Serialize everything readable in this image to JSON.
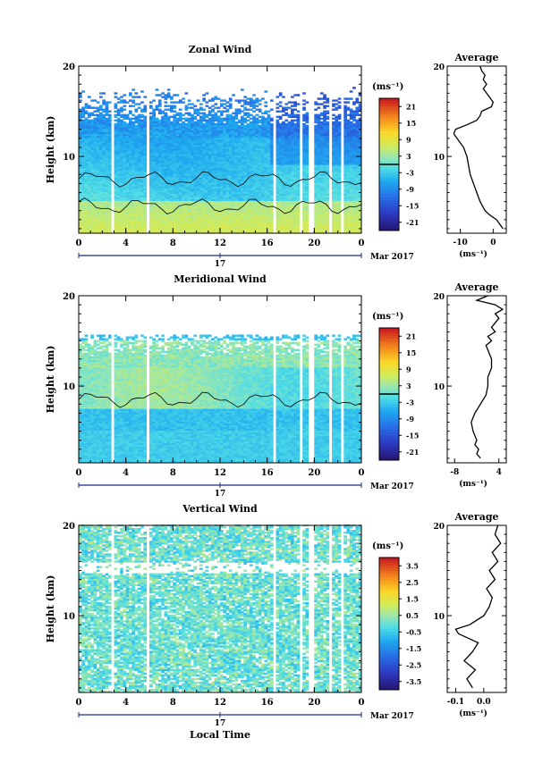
{
  "chart_data": [
    {
      "type": "heatmap",
      "title": "Zonal Wind",
      "ylabel": "Height (km)",
      "ylim": [
        1.5,
        20
      ],
      "xlim": [
        0,
        24
      ],
      "x_ticks": [
        "0",
        "4",
        "8",
        "12",
        "16",
        "20",
        "0"
      ],
      "y_ticks": [
        "10",
        "20"
      ],
      "date_label": "17",
      "month_label": "Mar 2017",
      "colorbar": {
        "unit": "(ms⁻¹)",
        "range": [
          -24,
          24
        ],
        "ticks": [
          "21",
          "15",
          "9",
          "3",
          "-3",
          "-9",
          "-15",
          "-21"
        ],
        "marker": 0
      },
      "average": {
        "title": "Average",
        "xlabel": "(ms⁻¹)",
        "x_ticks": [
          "-10",
          "0"
        ],
        "xlim": [
          -14,
          4
        ],
        "ylim": [
          1.5,
          20
        ],
        "y_ticks": [
          "10",
          "20"
        ],
        "profile": [
          [
            2,
            3
          ],
          [
            2.5,
            2
          ],
          [
            3,
            1
          ],
          [
            3.5,
            -1
          ],
          [
            4,
            -2.5
          ],
          [
            5,
            -4
          ],
          [
            6,
            -5
          ],
          [
            7,
            -6
          ],
          [
            8,
            -7
          ],
          [
            9,
            -7.5
          ],
          [
            10,
            -8
          ],
          [
            11,
            -9
          ],
          [
            12,
            -11
          ],
          [
            12.5,
            -12
          ],
          [
            13,
            -11.5
          ],
          [
            13.5,
            -8
          ],
          [
            14,
            -5
          ],
          [
            14.5,
            -4
          ],
          [
            15,
            -3.5
          ],
          [
            15.5,
            -0.5
          ],
          [
            16,
            0
          ],
          [
            16.5,
            -1
          ],
          [
            17,
            -2
          ],
          [
            17.5,
            -3
          ],
          [
            18,
            -2
          ],
          [
            18.5,
            -3
          ],
          [
            19,
            -2.5
          ],
          [
            19.5,
            -3.5
          ],
          [
            20,
            -4
          ]
        ]
      }
    },
    {
      "type": "heatmap",
      "title": "Meridional Wind",
      "ylabel": "Height (km)",
      "ylim": [
        1.5,
        20
      ],
      "xlim": [
        0,
        24
      ],
      "x_ticks": [
        "0",
        "4",
        "8",
        "12",
        "16",
        "20",
        "0"
      ],
      "y_ticks": [
        "10",
        "20"
      ],
      "date_label": "17",
      "month_label": "Mar 2017",
      "colorbar": {
        "unit": "(ms⁻¹)",
        "range": [
          -24,
          24
        ],
        "ticks": [
          "21",
          "15",
          "9",
          "3",
          "-3",
          "-9",
          "-15",
          "-21"
        ],
        "marker": 0
      },
      "average": {
        "title": "Average",
        "xlabel": "(ms⁻¹)",
        "x_ticks": [
          "-8",
          "4"
        ],
        "xlim": [
          -10,
          6
        ],
        "ylim": [
          1.5,
          20
        ],
        "y_ticks": [
          "10",
          "20"
        ],
        "profile": [
          [
            2,
            -1
          ],
          [
            2.5,
            -2
          ],
          [
            3,
            -1.5
          ],
          [
            3.5,
            -2.5
          ],
          [
            4,
            -2
          ],
          [
            5,
            -3
          ],
          [
            6,
            -3.5
          ],
          [
            7,
            -2.5
          ],
          [
            8,
            -1
          ],
          [
            9,
            0.5
          ],
          [
            10,
            1
          ],
          [
            11,
            1
          ],
          [
            12,
            2
          ],
          [
            13,
            2
          ],
          [
            14,
            1
          ],
          [
            14.5,
            0.5
          ],
          [
            15,
            2
          ],
          [
            15.5,
            1
          ],
          [
            16,
            3
          ],
          [
            16.5,
            2
          ],
          [
            17,
            3
          ],
          [
            17.5,
            4
          ],
          [
            18,
            3
          ],
          [
            18.5,
            5
          ],
          [
            19,
            3
          ],
          [
            19.5,
            -2
          ],
          [
            20,
            1
          ]
        ]
      }
    },
    {
      "type": "heatmap",
      "title": "Vertical Wind",
      "ylabel": "Height (km)",
      "xlabel": "Local Time",
      "ylim": [
        1.5,
        20
      ],
      "xlim": [
        0,
        24
      ],
      "x_ticks": [
        "0",
        "4",
        "8",
        "12",
        "16",
        "20",
        "0"
      ],
      "y_ticks": [
        "10",
        "20"
      ],
      "date_label": "17",
      "month_label": "Mar 2017",
      "colorbar": {
        "unit": "(ms⁻¹)",
        "range": [
          -4,
          4
        ],
        "ticks": [
          "3.5",
          "2.5",
          "1.5",
          "0.5",
          "-0.5",
          "-1.5",
          "-2.5",
          "-3.5"
        ]
      },
      "average": {
        "title": "Average",
        "xlabel": "(ms⁻¹)",
        "x_ticks": [
          "-0.1",
          "0.0"
        ],
        "xlim": [
          -0.13,
          0.08
        ],
        "ylim": [
          1.5,
          20
        ],
        "y_ticks": [
          "10",
          "20"
        ],
        "profile": [
          [
            2,
            -0.04
          ],
          [
            3,
            -0.06
          ],
          [
            4,
            -0.03
          ],
          [
            5,
            -0.07
          ],
          [
            6,
            -0.04
          ],
          [
            7,
            -0.02
          ],
          [
            8,
            -0.09
          ],
          [
            8.5,
            -0.1
          ],
          [
            9,
            -0.05
          ],
          [
            10,
            0.0
          ],
          [
            11,
            0.02
          ],
          [
            12,
            0.03
          ],
          [
            13,
            0.01
          ],
          [
            14,
            0.04
          ],
          [
            15,
            0.02
          ],
          [
            16,
            0.05
          ],
          [
            17,
            0.03
          ],
          [
            18,
            0.06
          ],
          [
            19,
            0.04
          ],
          [
            20,
            0.05
          ]
        ]
      }
    }
  ]
}
